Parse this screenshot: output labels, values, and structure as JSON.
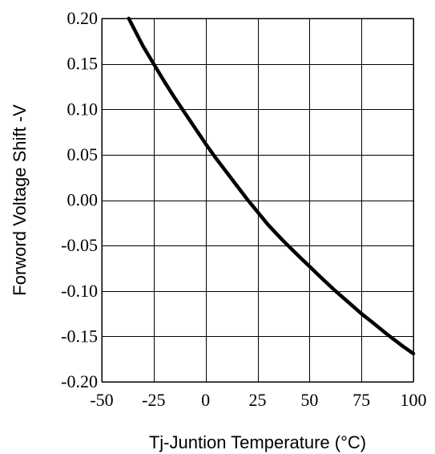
{
  "chart_data": {
    "type": "line",
    "title": "",
    "xlabel": "Tj-Juntion Temperature (°C)",
    "ylabel": "Forword Voltage Shift -V",
    "xlim": [
      -50,
      100
    ],
    "ylim": [
      -0.2,
      0.2
    ],
    "grid": true,
    "x_ticks": [
      "-50",
      "-25",
      "0",
      "25",
      "50",
      "75",
      "100"
    ],
    "y_ticks": [
      "0.20",
      "0.15",
      "0.10",
      "0.05",
      "0.00",
      "-0.05",
      "-0.10",
      "-0.15",
      "-0.20"
    ],
    "x_tick_values": [
      -50,
      -25,
      0,
      25,
      50,
      75,
      100
    ],
    "y_tick_values": [
      0.2,
      0.15,
      0.1,
      0.05,
      0.0,
      -0.05,
      -0.1,
      -0.15,
      -0.2
    ],
    "series": [
      {
        "color": "#000000",
        "x": [
          -37,
          -30,
          -25,
          -20,
          -15,
          -10,
          -5,
          0,
          5,
          10,
          15,
          20,
          25,
          30,
          37,
          45,
          50,
          55,
          62,
          70,
          75,
          80,
          87,
          95,
          100
        ],
        "y": [
          0.2,
          0.169,
          0.15,
          0.131,
          0.113,
          0.096,
          0.079,
          0.062,
          0.046,
          0.031,
          0.016,
          0.001,
          -0.013,
          -0.027,
          -0.044,
          -0.062,
          -0.073,
          -0.084,
          -0.099,
          -0.115,
          -0.125,
          -0.134,
          -0.147,
          -0.161,
          -0.169
        ]
      }
    ]
  }
}
